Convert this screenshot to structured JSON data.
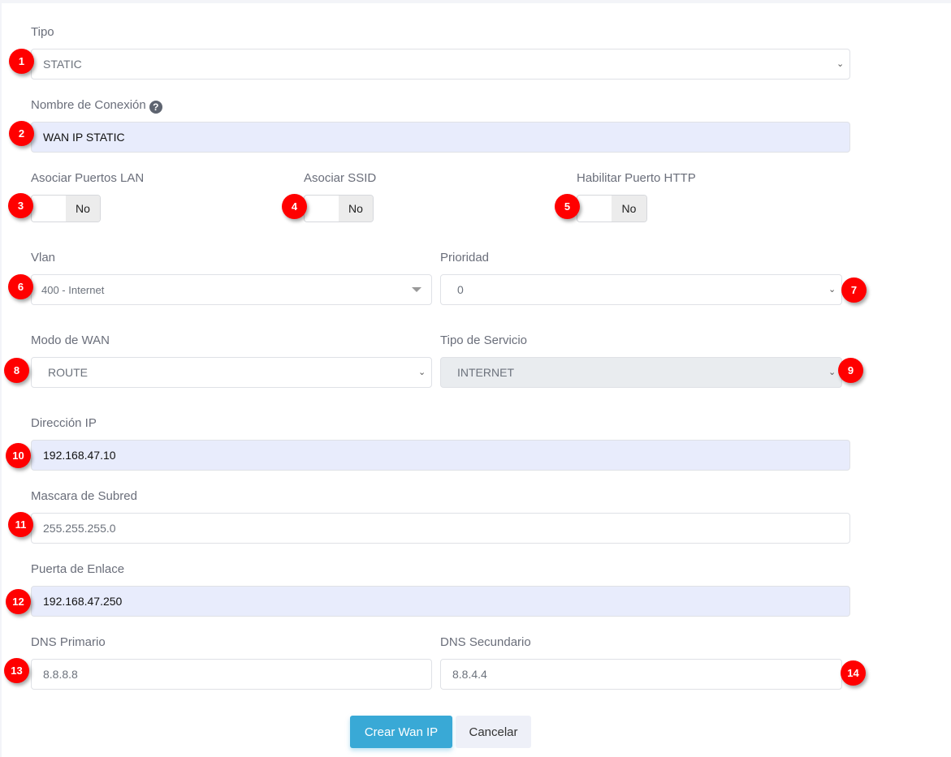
{
  "form": {
    "tipo": {
      "label": "Tipo",
      "value": "STATIC"
    },
    "nombre": {
      "label": "Nombre de Conexión",
      "value": "WAN IP STATIC"
    },
    "asociar_lan": {
      "label": "Asociar Puertos LAN",
      "state": "No"
    },
    "asociar_ssid": {
      "label": "Asociar SSID",
      "state": "No"
    },
    "http": {
      "label": "Habilitar Puerto HTTP",
      "state": "No"
    },
    "vlan": {
      "label": "Vlan",
      "value": "400 - Internet"
    },
    "prioridad": {
      "label": "Prioridad",
      "value": "0"
    },
    "modo_wan": {
      "label": "Modo de WAN",
      "value": "ROUTE"
    },
    "tipo_servicio": {
      "label": "Tipo de Servicio",
      "value": "INTERNET"
    },
    "ip": {
      "label": "Dirección IP",
      "value": "192.168.47.10"
    },
    "mascara": {
      "label": "Mascara de Subred",
      "value": "255.255.255.0"
    },
    "puerta": {
      "label": "Puerta de Enlace",
      "value": "192.168.47.250"
    },
    "dns1": {
      "label": "DNS Primario",
      "value": "8.8.8.8"
    },
    "dns2": {
      "label": "DNS Secundario",
      "value": "8.8.4.4"
    }
  },
  "buttons": {
    "create": "Crear Wan IP",
    "cancel": "Cancelar"
  },
  "badges": [
    "1",
    "2",
    "3",
    "4",
    "5",
    "6",
    "7",
    "8",
    "9",
    "10",
    "11",
    "12",
    "13",
    "14"
  ],
  "colors": {
    "primary": "#39a9d6",
    "badge": "#ff0000",
    "autofill": "#e8ecfc"
  }
}
